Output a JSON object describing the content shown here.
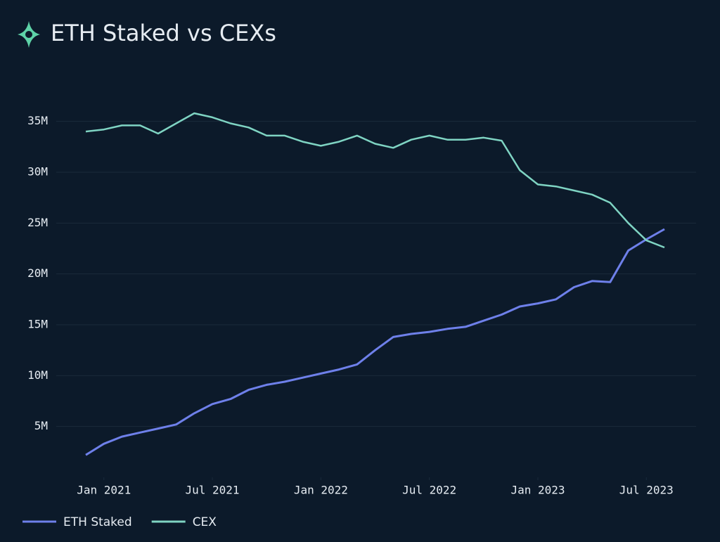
{
  "chart_data": {
    "type": "line",
    "title": "ETH Staked vs CEXs",
    "x": [
      "2020-12",
      "2021-01",
      "2021-02",
      "2021-03",
      "2021-04",
      "2021-05",
      "2021-06",
      "2021-07",
      "2021-08",
      "2021-09",
      "2021-10",
      "2021-11",
      "2021-12",
      "2022-01",
      "2022-02",
      "2022-03",
      "2022-04",
      "2022-05",
      "2022-06",
      "2022-07",
      "2022-08",
      "2022-09",
      "2022-10",
      "2022-11",
      "2022-12",
      "2023-01",
      "2023-02",
      "2023-03",
      "2023-04",
      "2023-05",
      "2023-06",
      "2023-07",
      "2023-08"
    ],
    "series": [
      {
        "name": "ETH Staked",
        "color": "#6e80ea",
        "values": [
          2.2,
          3.3,
          4.0,
          4.4,
          4.8,
          5.2,
          6.3,
          7.2,
          7.7,
          8.6,
          9.1,
          9.4,
          9.8,
          10.2,
          10.6,
          11.1,
          12.5,
          13.8,
          14.1,
          14.3,
          14.6,
          14.8,
          15.4,
          16.0,
          16.8,
          17.1,
          17.5,
          18.7,
          19.3,
          19.2,
          22.3,
          23.4,
          24.4
        ]
      },
      {
        "name": "CEX",
        "color": "#7fd4c3",
        "values": [
          34.0,
          34.2,
          34.6,
          34.6,
          33.8,
          34.8,
          35.8,
          35.4,
          34.8,
          34.4,
          33.6,
          33.6,
          33.0,
          32.6,
          33.0,
          33.6,
          32.8,
          32.4,
          33.2,
          33.6,
          33.2,
          33.2,
          33.4,
          33.1,
          30.2,
          28.8,
          28.6,
          28.2,
          27.8,
          27.0,
          25.0,
          23.3,
          22.6
        ]
      }
    ],
    "xlim": [
      "2020-12",
      "2023-08"
    ],
    "xticks": [
      {
        "value": "2021-01",
        "label": "Jan 2021"
      },
      {
        "value": "2021-07",
        "label": "Jul 2021"
      },
      {
        "value": "2022-01",
        "label": "Jan 2022"
      },
      {
        "value": "2022-07",
        "label": "Jul 2022"
      },
      {
        "value": "2023-01",
        "label": "Jan 2023"
      },
      {
        "value": "2023-07",
        "label": "Jul 2023"
      }
    ],
    "ylim": [
      0,
      38
    ],
    "yticks": [
      {
        "value": 5,
        "label": "5M"
      },
      {
        "value": 10,
        "label": "10M"
      },
      {
        "value": 15,
        "label": "15M"
      },
      {
        "value": 20,
        "label": "20M"
      },
      {
        "value": 25,
        "label": "25M"
      },
      {
        "value": 30,
        "label": "30M"
      },
      {
        "value": 35,
        "label": "35M"
      }
    ],
    "grid": true,
    "legend": "bottom-left"
  }
}
